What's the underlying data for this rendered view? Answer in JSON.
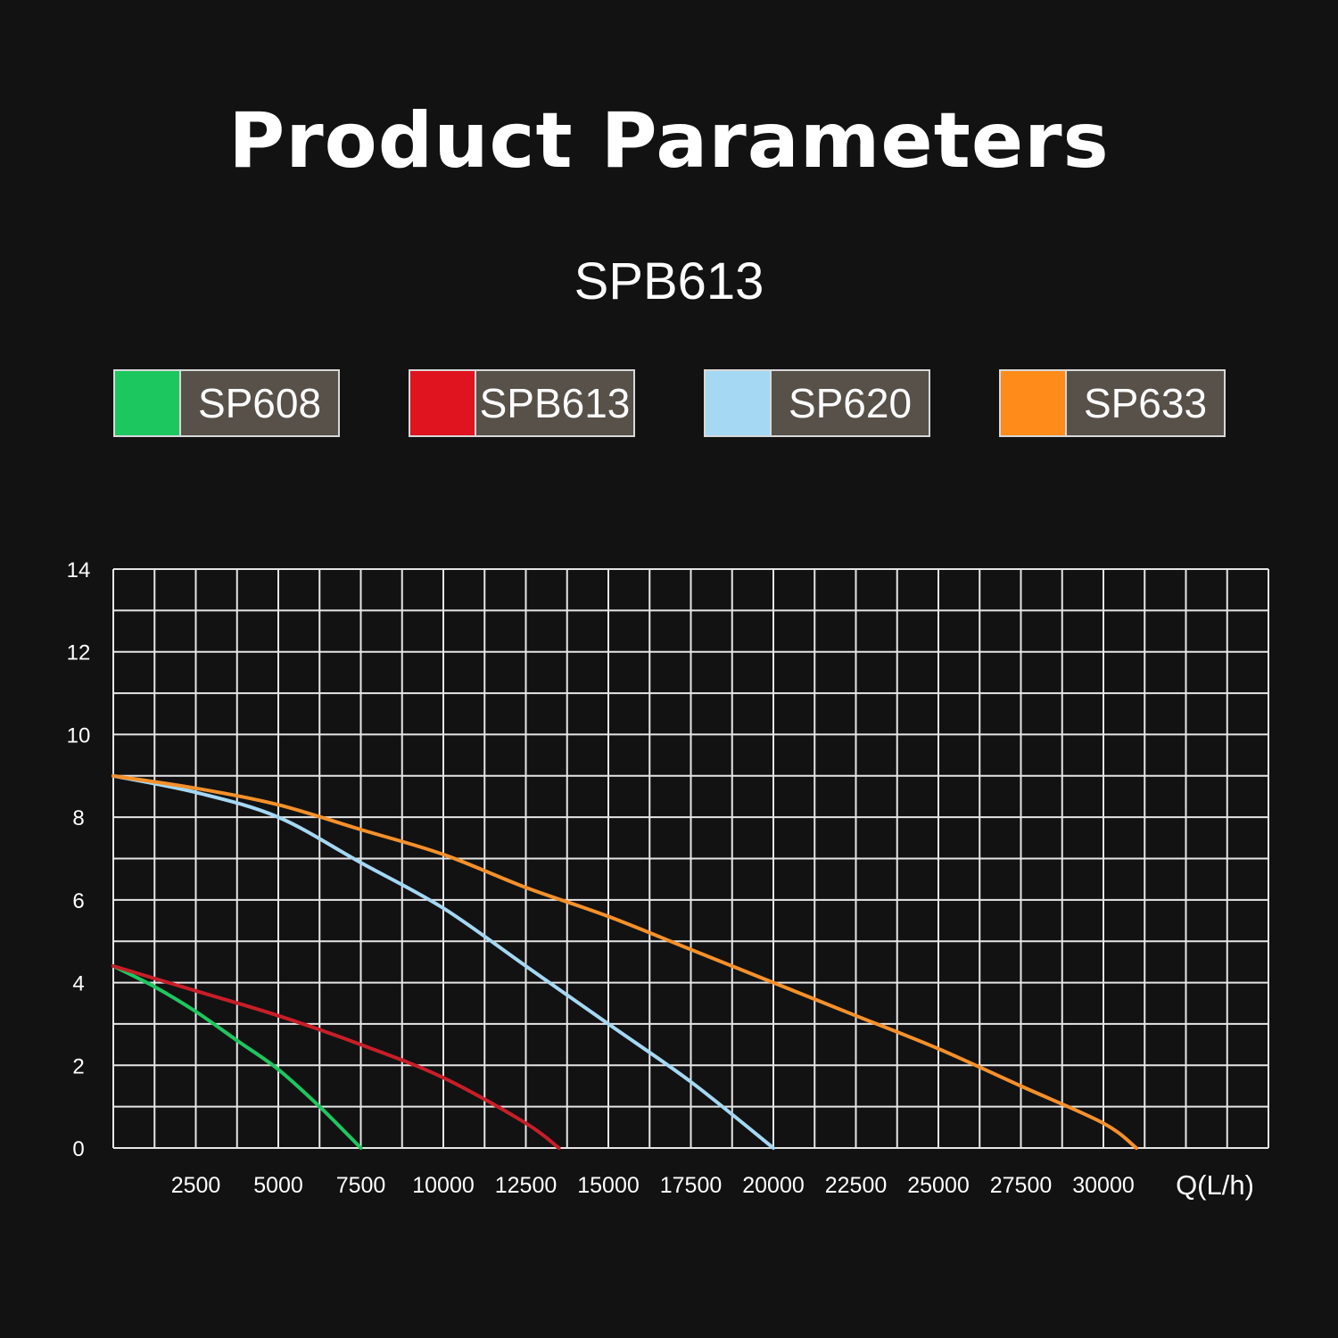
{
  "title": "Product Parameters",
  "subtitle": "SPB613",
  "legend": [
    {
      "name": "SP608",
      "color": "#1dc75f"
    },
    {
      "name": "SPB613",
      "color": "#e0141e"
    },
    {
      "name": "SP620",
      "color": "#a4d8f3"
    },
    {
      "name": "SP633",
      "color": "#ff8b1a"
    }
  ],
  "chart_data": {
    "type": "line",
    "title": "",
    "xlabel": "Q(L/h)",
    "ylabel": "",
    "xlim": [
      0,
      35000
    ],
    "ylim": [
      0,
      14
    ],
    "grid": true,
    "x_ticks": [
      "2500",
      "5000",
      "7500",
      "10000",
      "12500",
      "15000",
      "17500",
      "20000",
      "22500",
      "25000",
      "27500",
      "30000"
    ],
    "y_ticks": [
      "0",
      "2",
      "4",
      "6",
      "8",
      "10",
      "12",
      "14"
    ],
    "series": [
      {
        "name": "SP608",
        "color": "#1dc75f",
        "points": [
          [
            0,
            4.4
          ],
          [
            1250,
            3.9
          ],
          [
            2500,
            3.3
          ],
          [
            3750,
            2.6
          ],
          [
            5000,
            1.9
          ],
          [
            6250,
            1.0
          ],
          [
            7500,
            0
          ]
        ]
      },
      {
        "name": "SPB613",
        "color": "#c81e28",
        "points": [
          [
            0,
            4.4
          ],
          [
            2500,
            3.8
          ],
          [
            5000,
            3.2
          ],
          [
            7500,
            2.5
          ],
          [
            10000,
            1.7
          ],
          [
            12500,
            0.6
          ],
          [
            13500,
            0
          ]
        ]
      },
      {
        "name": "SP620",
        "color": "#a4d8f3",
        "points": [
          [
            0,
            9.0
          ],
          [
            2500,
            8.6
          ],
          [
            5000,
            8.0
          ],
          [
            7500,
            6.9
          ],
          [
            10000,
            5.8
          ],
          [
            12500,
            4.4
          ],
          [
            15000,
            3.0
          ],
          [
            17500,
            1.6
          ],
          [
            20000,
            0
          ]
        ]
      },
      {
        "name": "SP633",
        "color": "#f5902a",
        "points": [
          [
            0,
            9.0
          ],
          [
            2500,
            8.7
          ],
          [
            5000,
            8.3
          ],
          [
            7500,
            7.7
          ],
          [
            10000,
            7.1
          ],
          [
            12500,
            6.3
          ],
          [
            15000,
            5.6
          ],
          [
            17500,
            4.8
          ],
          [
            20000,
            4.0
          ],
          [
            22500,
            3.2
          ],
          [
            25000,
            2.4
          ],
          [
            27500,
            1.5
          ],
          [
            30000,
            0.6
          ],
          [
            31000,
            0
          ]
        ]
      }
    ]
  }
}
